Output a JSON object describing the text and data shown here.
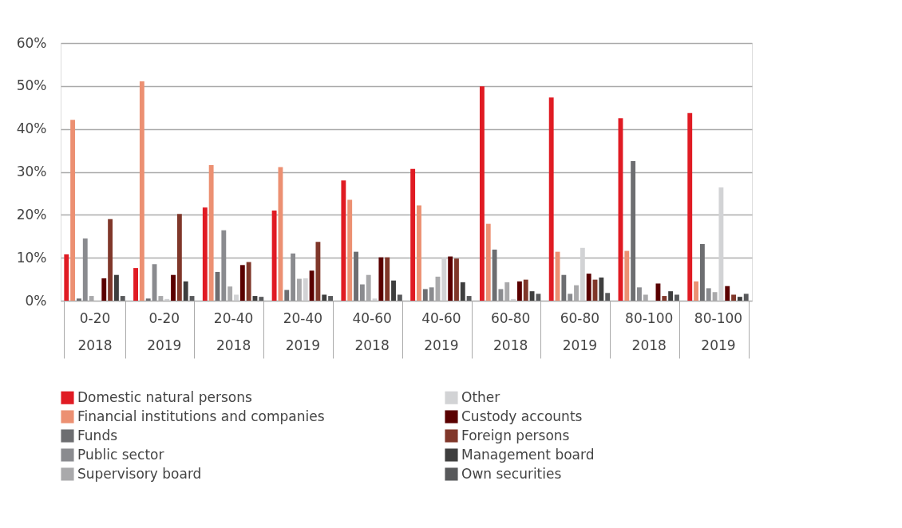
{
  "chart_data": {
    "type": "bar",
    "categories": [
      "0-20 2018",
      "0-20 2019",
      "20-40 2018",
      "20-40 2019",
      "40-60 2018",
      "40-60 2019",
      "60-80 2018",
      "60-80 2019",
      "80-100 2018",
      "80-100 2019"
    ],
    "ylim": [
      0,
      60
    ],
    "yticks": [
      {
        "value": 0,
        "label": "0%"
      },
      {
        "value": 10,
        "label": "10%"
      },
      {
        "value": 20,
        "label": "20%"
      },
      {
        "value": 30,
        "label": "30%"
      },
      {
        "value": 40,
        "label": "40%"
      },
      {
        "value": 50,
        "label": "50%"
      },
      {
        "value": 60,
        "label": "60%"
      }
    ],
    "grid": "y",
    "legend": "bottom",
    "series": [
      {
        "name": "Domestic natural persons",
        "color": "#e01b23",
        "values": [
          10.8,
          7.6,
          21.7,
          21.0,
          28.0,
          30.7,
          49.9,
          47.3,
          42.5,
          43.7
        ]
      },
      {
        "name": "Financial institutions and companies",
        "color": "#ec9072",
        "values": [
          42.1,
          51.1,
          31.6,
          31.1,
          23.5,
          22.2,
          17.9,
          11.4,
          11.6,
          4.5
        ]
      },
      {
        "name": "Funds",
        "color": "#6d6e71",
        "values": [
          0.5,
          0.5,
          6.7,
          2.5,
          11.4,
          2.7,
          11.9,
          6.0,
          32.5,
          13.2
        ]
      },
      {
        "name": "Public sector",
        "color": "#8a8b8f",
        "values": [
          14.5,
          8.5,
          16.4,
          11.0,
          3.8,
          3.1,
          2.7,
          1.6,
          3.1,
          2.9
        ]
      },
      {
        "name": "Supervisory board",
        "color": "#a9a9ab",
        "values": [
          1.1,
          1.1,
          3.3,
          5.1,
          6.0,
          5.6,
          4.3,
          3.6,
          1.4,
          2.0
        ]
      },
      {
        "name": "Other",
        "color": "#d2d3d5",
        "values": [
          0,
          0.4,
          1.4,
          5.2,
          0.5,
          10.1,
          0.4,
          12.3,
          0,
          26.4
        ]
      },
      {
        "name": "Custody accounts",
        "color": "#5a0000",
        "values": [
          5.2,
          6.0,
          8.3,
          7.0,
          10.1,
          10.3,
          4.5,
          6.3,
          4.0,
          3.4
        ]
      },
      {
        "name": "Foreign persons",
        "color": "#80372a",
        "values": [
          19.0,
          20.2,
          9.0,
          13.7,
          10.1,
          9.8,
          4.9,
          4.9,
          1.1,
          1.4
        ]
      },
      {
        "name": "Management board",
        "color": "#3e3e3e",
        "values": [
          6.0,
          4.5,
          1.1,
          1.4,
          4.7,
          4.3,
          2.2,
          5.4,
          2.2,
          0.9
        ]
      },
      {
        "name": "Own securities",
        "color": "#58595b",
        "values": [
          1.1,
          1.1,
          0.9,
          1.1,
          1.4,
          1.1,
          1.6,
          1.8,
          1.4,
          1.6
        ]
      }
    ]
  }
}
